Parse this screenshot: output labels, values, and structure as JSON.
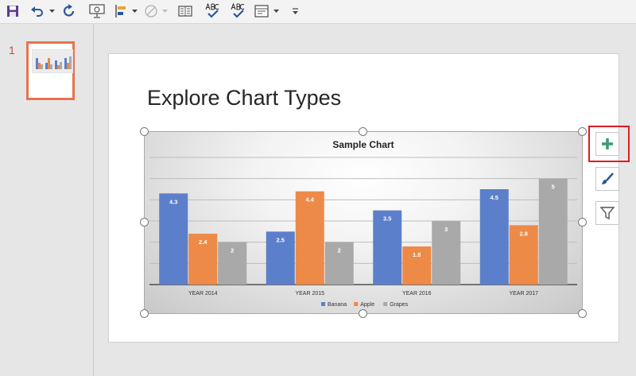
{
  "slide_pane": {
    "slide_number": "1"
  },
  "slide": {
    "title": "Explore Chart Types"
  },
  "colors": {
    "banana": "#5b7fcb",
    "apple": "#ed8a47",
    "grapes": "#a9a9a9",
    "accent": "#d24726",
    "highlight": "#e01b24"
  },
  "toolbar": {
    "icons": [
      "save-icon",
      "undo-icon",
      "redo-icon",
      "start-slideshow-icon",
      "align-icon",
      "shape-icon",
      "read-mode-icon",
      "spelling-icon",
      "spelling-check-icon",
      "layout-icon",
      "customize-toolbar-icon"
    ]
  },
  "chart_buttons": [
    "chart-elements-plus-icon",
    "chart-styles-brush-icon",
    "chart-filters-funnel-icon"
  ],
  "chart_data": {
    "type": "bar",
    "title": "Sample Chart",
    "categories": [
      "YEAR 2014",
      "YEAR 2015",
      "YEAR 2016",
      "YEAR 2017"
    ],
    "series": [
      {
        "name": "Banana",
        "values": [
          4.3,
          2.5,
          3.5,
          4.5
        ]
      },
      {
        "name": "Apple",
        "values": [
          2.4,
          4.4,
          1.8,
          2.8
        ]
      },
      {
        "name": "Grapes",
        "values": [
          2,
          2,
          3,
          5
        ]
      }
    ],
    "ylim": [
      0,
      6
    ],
    "grid": true,
    "legend": "bottom",
    "data_labels": true
  }
}
